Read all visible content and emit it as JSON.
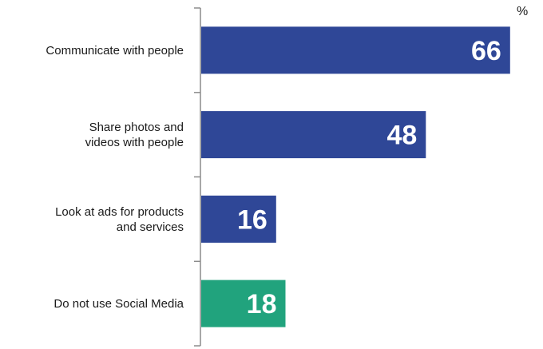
{
  "chart_data": {
    "type": "bar",
    "orientation": "horizontal",
    "unit_label": "%",
    "categories": [
      [
        "Communicate with people"
      ],
      [
        "Share photos and",
        "videos with people"
      ],
      [
        "Look at ads for products",
        "and services"
      ],
      [
        "Do not use Social Media"
      ]
    ],
    "values": [
      66,
      48,
      16,
      18
    ],
    "xlim": [
      0,
      70
    ],
    "colors": [
      "#2f4797",
      "#2f4797",
      "#2f4797",
      "#21a37d"
    ],
    "axis_color": "#8c8c8c",
    "data_labels": true,
    "grid": false,
    "legend": "none"
  }
}
